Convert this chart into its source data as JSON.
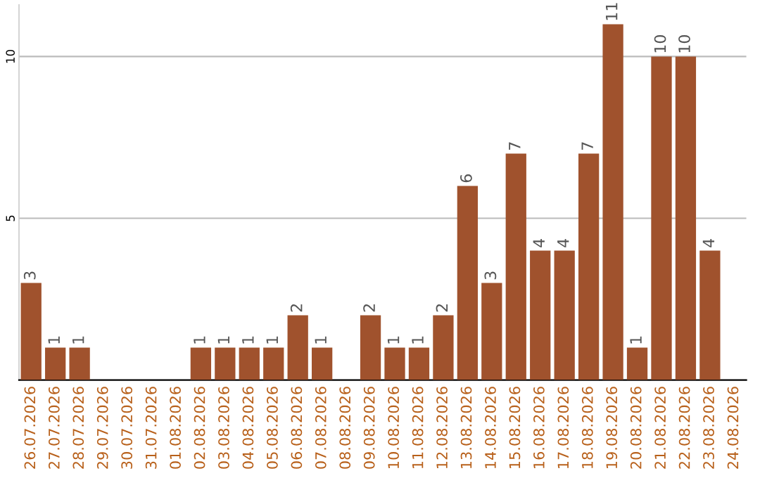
{
  "chart_data": {
    "type": "bar",
    "categories": [
      "26.07.2026",
      "27.07.2026",
      "28.07.2026",
      "29.07.2026",
      "30.07.2026",
      "31.07.2026",
      "01.08.2026",
      "02.08.2026",
      "03.08.2026",
      "04.08.2026",
      "05.08.2026",
      "06.08.2026",
      "07.08.2026",
      "08.08.2026",
      "09.08.2026",
      "10.08.2026",
      "11.08.2026",
      "12.08.2026",
      "13.08.2026",
      "14.08.2026",
      "15.08.2026",
      "16.08.2026",
      "17.08.2026",
      "18.08.2026",
      "19.08.2026",
      "20.08.2026",
      "21.08.2026",
      "22.08.2026",
      "23.08.2026",
      "24.08.2026"
    ],
    "values": [
      3,
      1,
      1,
      0,
      0,
      0,
      0,
      1,
      1,
      1,
      1,
      2,
      1,
      0,
      2,
      1,
      1,
      2,
      6,
      3,
      7,
      4,
      4,
      7,
      11,
      1,
      10,
      10,
      4,
      0
    ],
    "value_labels": [
      "3",
      "1",
      "1",
      null,
      null,
      null,
      null,
      "1",
      "1",
      "1",
      "1",
      "2",
      "1",
      null,
      "2",
      "1",
      "1",
      "2",
      "6",
      "3",
      "7",
      "4",
      "4",
      "7",
      "11",
      "1",
      "10",
      "10",
      "4",
      null
    ],
    "color": "#a0522d",
    "ylim": [
      0,
      11.6
    ],
    "yticks": [
      5,
      10
    ],
    "grid": "y"
  }
}
